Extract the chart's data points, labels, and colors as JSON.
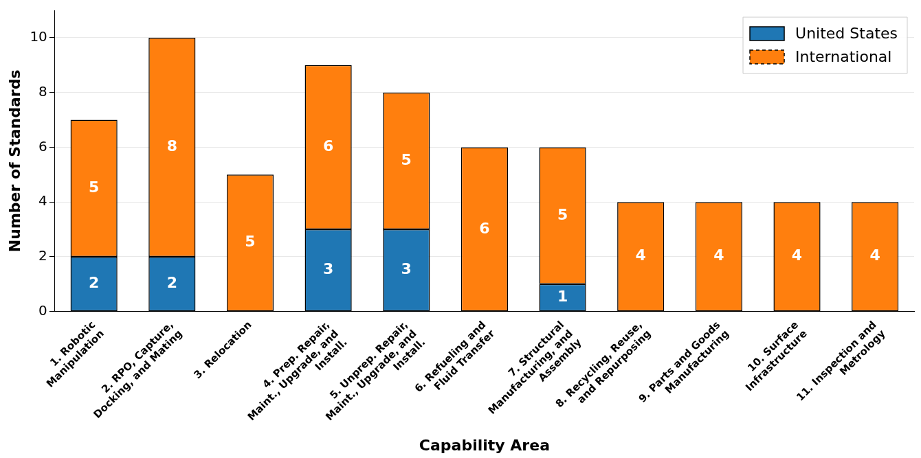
{
  "chart_data": {
    "type": "bar",
    "stacked": true,
    "xlabel": "Capability Area",
    "ylabel": "Number of Standards",
    "categories": [
      "1. Robotic\nManipulation",
      "2. RPO, Capture,\nDocking, and Mating",
      "3. Relocation",
      "4. Prep. Repair,\nMaint., Upgrade, and\nInstall.",
      "5. Unprep. Repair,\nMaint., Upgrade, and\nInstall.",
      "6. Refueling and\nFluid Transfer",
      "7. Structural\nManufacturing, and\nAssembly",
      "8. Recycling, Reuse,\nand Repurposing",
      "9. Parts and Goods\nManufacturing",
      "10. Surface\nInfrastructure",
      "11. Inspection and\nMetrology"
    ],
    "series": [
      {
        "name": "United States",
        "color": "#1f77b4",
        "line_style": "solid",
        "values": [
          2,
          2,
          0,
          3,
          3,
          0,
          1,
          0,
          0,
          0,
          0
        ],
        "value_labels": [
          "2",
          "2",
          null,
          "3",
          "3",
          null,
          "1",
          null,
          null,
          null,
          null
        ]
      },
      {
        "name": "International",
        "color": "#ff7f0e",
        "line_style": "dashed",
        "values": [
          5,
          8,
          5,
          6,
          5,
          6,
          5,
          4,
          4,
          4,
          4
        ],
        "value_labels": [
          "5",
          "8",
          "5",
          "6",
          "5",
          "6",
          "5",
          "4",
          "4",
          "4",
          "4"
        ]
      }
    ],
    "ylim": [
      0,
      11
    ],
    "yticks": [
      0,
      2,
      4,
      6,
      8,
      10
    ],
    "grid": "y",
    "legend": "top right"
  }
}
